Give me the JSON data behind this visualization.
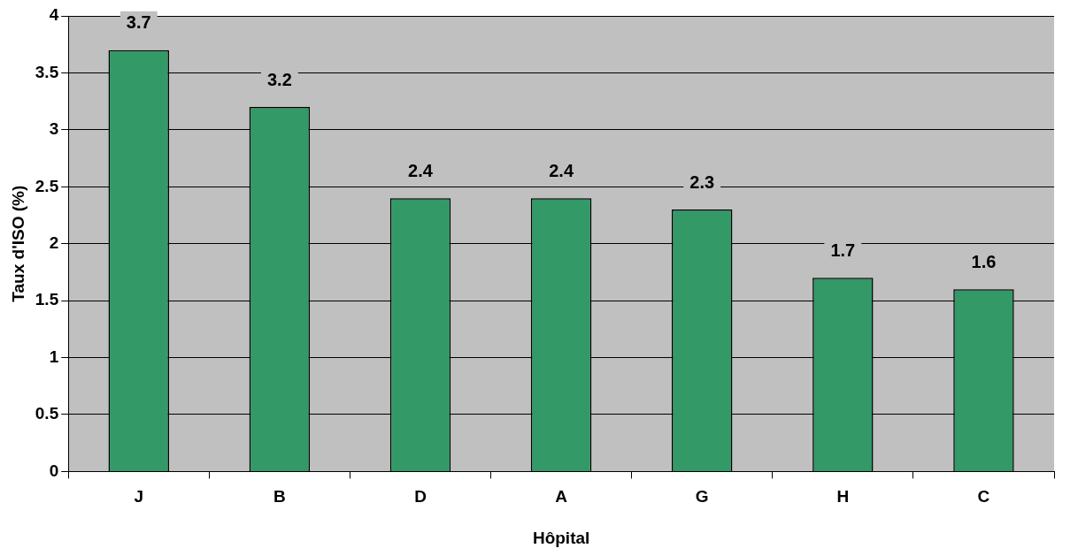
{
  "chart_data": {
    "type": "bar",
    "xlabel": "Hôpital",
    "ylabel": "Taux d'ISO (%)",
    "categories": [
      "J",
      "B",
      "D",
      "A",
      "G",
      "H",
      "C"
    ],
    "values": [
      3.7,
      3.2,
      2.4,
      2.4,
      2.3,
      1.7,
      1.6
    ],
    "color": "#339966",
    "ylim": [
      0,
      4
    ],
    "yticks": [
      0,
      0.5,
      1,
      1.5,
      2,
      2.5,
      3,
      3.5,
      4
    ],
    "grid": "y",
    "data_labels": true,
    "legend": false
  }
}
